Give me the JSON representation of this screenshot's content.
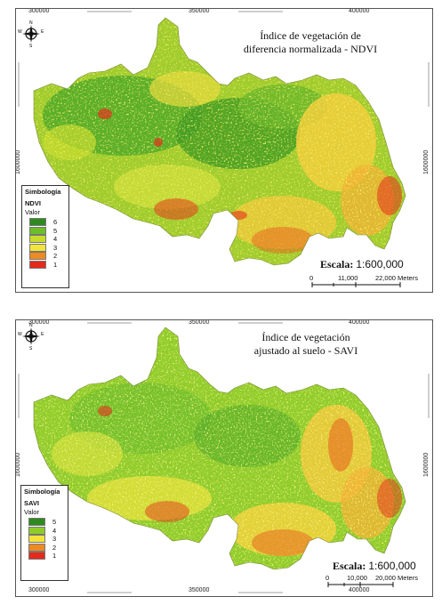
{
  "maps": [
    {
      "id": "ndvi",
      "title_line1": "Índice de vegetación de",
      "title_line2": "diferencia normalizada - NDVI",
      "legend": {
        "title": "Simbología",
        "layer": "NDVI",
        "field": "Valor",
        "classes": [
          {
            "label": "6",
            "color": "#2e8a1e"
          },
          {
            "label": "5",
            "color": "#6cbf2a"
          },
          {
            "label": "4",
            "color": "#c8dc2c"
          },
          {
            "label": "3",
            "color": "#f2e43a"
          },
          {
            "label": "2",
            "color": "#ee8a22"
          },
          {
            "label": "1",
            "color": "#e32a1c"
          }
        ]
      },
      "scale_label": "Escala:",
      "scale_value": "1:600,000",
      "scale_ticks": [
        "0",
        "11,000",
        "22,000 Meters"
      ],
      "coords_top": [
        "300000",
        "350000",
        "400000"
      ],
      "coords_bottom": [],
      "coords_left": [
        "1600000"
      ],
      "coords_right": [
        "1600000"
      ],
      "north_labels": {
        "n": "N",
        "s": "S",
        "e": "E",
        "w": "W"
      }
    },
    {
      "id": "savi",
      "title_line1": "Índice de vegetación",
      "title_line2": "ajustado al suelo - SAVI",
      "legend": {
        "title": "Simbología",
        "layer": "SAVI",
        "field": "Valor",
        "classes": [
          {
            "label": "5",
            "color": "#2e8a1e"
          },
          {
            "label": "4",
            "color": "#8fcc2a"
          },
          {
            "label": "3",
            "color": "#f2e43a"
          },
          {
            "label": "2",
            "color": "#ee8a22"
          },
          {
            "label": "1",
            "color": "#e32a1c"
          }
        ]
      },
      "scale_label": "Escala:",
      "scale_value": "1:600,000",
      "scale_ticks": [
        "0",
        "10,000",
        "20,000 Meters"
      ],
      "coords_top": [
        "300000",
        "350000",
        "400000"
      ],
      "coords_bottom": [
        "300000",
        "350000",
        "400000"
      ],
      "coords_left": [
        "1600000"
      ],
      "coords_right": [
        "1600000"
      ],
      "north_labels": {
        "n": "N",
        "s": "S",
        "e": "E",
        "w": "W"
      }
    }
  ]
}
